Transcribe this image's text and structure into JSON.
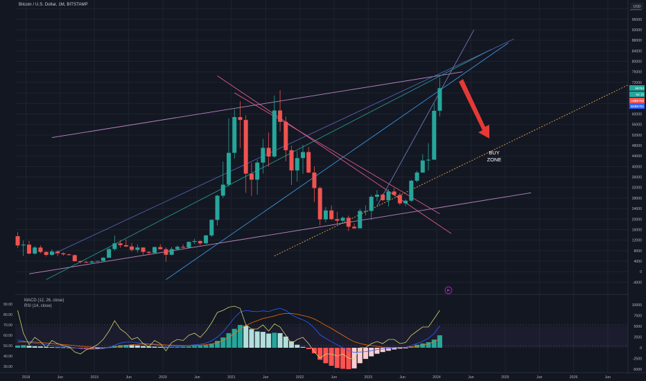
{
  "header": {
    "title": "Bitcoin / U.S. Dollar, 1M, BITSTAMP",
    "currency": "USD"
  },
  "indicators": {
    "macd_label": "MACD (12, 26, close)",
    "rsi_label": "RSI (14, close)"
  },
  "annotation": {
    "line1": "BUY",
    "line2": "ZONE"
  },
  "price_tags": [
    {
      "label": "",
      "value": "69784",
      "color": "#26a69a"
    },
    {
      "label": "",
      "value": "5d 1h",
      "color": "#26a69a"
    },
    {
      "label": "Ask",
      "value": "69786",
      "color": "#ef5350"
    },
    {
      "label": "Bid",
      "value": "69751",
      "color": "#2962ff"
    }
  ],
  "chart_data": {
    "type": "candlestick",
    "title": "Bitcoin / U.S. Dollar, 1M, BITSTAMP",
    "price_axis": {
      "ticks": [
        100000,
        96000,
        92000,
        88000,
        84000,
        80000,
        76000,
        72000,
        68000,
        64000,
        60000,
        56000,
        52000,
        48000,
        44000,
        40000,
        36000,
        32000,
        28000,
        24000,
        20000,
        16000,
        12000,
        8000,
        4000,
        0,
        -4000
      ],
      "range": [
        -6000,
        102000
      ]
    },
    "indicator_axis": {
      "rsi_ticks": [
        "90.00",
        "80.00",
        "70.00",
        "60.00",
        "50.00",
        "40.00",
        "30.00"
      ],
      "macd_ticks": [
        "10000",
        "7500",
        "5000",
        "2500",
        "0",
        "-2500",
        "-5000"
      ]
    },
    "time_axis": [
      "2018",
      "Jun",
      "2019",
      "Jun",
      "2020",
      "Jun",
      "2021",
      "Jun",
      "2022",
      "Jun",
      "2023",
      "Jun",
      "2024",
      "Jun",
      "2025",
      "Jun",
      "2026",
      "Jun"
    ],
    "x_start": "2018-01",
    "candles": [
      [
        13500,
        15000,
        9000,
        10000
      ],
      [
        10000,
        11800,
        6000,
        10300
      ],
      [
        10300,
        11700,
        6600,
        6900
      ],
      [
        6900,
        9800,
        6400,
        9200
      ],
      [
        9200,
        10000,
        7000,
        7500
      ],
      [
        7500,
        7800,
        5800,
        6400
      ],
      [
        6400,
        8500,
        6000,
        7700
      ],
      [
        7700,
        8200,
        5900,
        7000
      ],
      [
        7000,
        7400,
        6100,
        6600
      ],
      [
        6600,
        6800,
        6200,
        6300
      ],
      [
        6300,
        6500,
        3900,
        4000
      ],
      [
        4000,
        4300,
        3200,
        3700
      ],
      [
        3700,
        4100,
        3400,
        3450
      ],
      [
        3450,
        4200,
        3400,
        3850
      ],
      [
        3850,
        4100,
        3700,
        4100
      ],
      [
        4100,
        5600,
        4000,
        5300
      ],
      [
        5300,
        9100,
        5300,
        8600
      ],
      [
        8600,
        13800,
        8000,
        10800
      ],
      [
        10800,
        12000,
        9100,
        10100
      ],
      [
        10100,
        12300,
        9300,
        9600
      ],
      [
        9600,
        10900,
        7700,
        8300
      ],
      [
        8300,
        10400,
        7300,
        9200
      ],
      [
        9200,
        9300,
        6500,
        7550
      ],
      [
        7550,
        7700,
        6400,
        7200
      ],
      [
        7200,
        9600,
        6900,
        9350
      ],
      [
        9350,
        10500,
        8500,
        8550
      ],
      [
        8550,
        9200,
        3800,
        6450
      ],
      [
        6450,
        9400,
        6200,
        8600
      ],
      [
        8600,
        10000,
        8100,
        9450
      ],
      [
        9450,
        10400,
        8900,
        9150
      ],
      [
        9150,
        11500,
        9000,
        11350
      ],
      [
        11350,
        12500,
        10500,
        11650
      ],
      [
        11650,
        12000,
        10000,
        10800
      ],
      [
        10800,
        14000,
        10400,
        13800
      ],
      [
        13800,
        19900,
        13200,
        19700
      ],
      [
        19700,
        29300,
        17600,
        28900
      ],
      [
        28900,
        41900,
        28100,
        33100
      ],
      [
        33100,
        58300,
        32300,
        45200
      ],
      [
        45200,
        61800,
        43000,
        58800
      ],
      [
        58800,
        64800,
        47000,
        57700
      ],
      [
        57700,
        59500,
        30000,
        37300
      ],
      [
        37300,
        41300,
        28800,
        35000
      ],
      [
        35000,
        42500,
        29300,
        41500
      ],
      [
        41500,
        50500,
        37300,
        47100
      ],
      [
        47100,
        52900,
        40000,
        43800
      ],
      [
        43800,
        67000,
        43300,
        61300
      ],
      [
        61300,
        69000,
        53300,
        57000
      ],
      [
        57000,
        59000,
        42000,
        46200
      ],
      [
        46200,
        47900,
        33000,
        38500
      ],
      [
        38500,
        45800,
        34300,
        43200
      ],
      [
        43200,
        48200,
        37200,
        45500
      ],
      [
        45500,
        47400,
        37500,
        37700
      ],
      [
        37700,
        40000,
        26500,
        31800
      ],
      [
        31800,
        32400,
        17600,
        19900
      ],
      [
        19900,
        24600,
        18800,
        23300
      ],
      [
        23300,
        25200,
        19600,
        20000
      ],
      [
        20000,
        22800,
        18200,
        19400
      ],
      [
        19400,
        21000,
        18200,
        20500
      ],
      [
        20500,
        21400,
        15500,
        17100
      ],
      [
        17100,
        18400,
        16300,
        16500
      ],
      [
        16500,
        23900,
        16500,
        23100
      ],
      [
        23100,
        25200,
        21400,
        23100
      ],
      [
        23100,
        29200,
        19600,
        28500
      ],
      [
        28500,
        31000,
        26900,
        29300
      ],
      [
        29300,
        29800,
        26800,
        27200
      ],
      [
        27200,
        31400,
        24800,
        30500
      ],
      [
        30500,
        31800,
        28900,
        29200
      ],
      [
        29200,
        30000,
        25300,
        26000
      ],
      [
        26000,
        27500,
        24900,
        27000
      ],
      [
        27000,
        35000,
        26500,
        34600
      ],
      [
        34600,
        38400,
        34000,
        37700
      ],
      [
        37700,
        44700,
        37600,
        42300
      ],
      [
        42300,
        48900,
        38500,
        42600
      ],
      [
        42600,
        64000,
        42500,
        61200
      ],
      [
        61200,
        73800,
        59000,
        69784
      ]
    ],
    "trendlines": [
      {
        "color": "#ce93d8",
        "points": [
          [
            "2018-07",
            51000
          ],
          [
            "2024-07",
            76000
          ]
        ]
      },
      {
        "color": "#ce93d8",
        "points": [
          [
            "2018-03",
            -800
          ],
          [
            "2025-07",
            30000
          ]
        ]
      },
      {
        "color": "#f06292",
        "points": [
          [
            "2020-12",
            74500
          ],
          [
            "2024-05",
            14500
          ]
        ]
      },
      {
        "color": "#f06292",
        "points": [
          [
            "2021-03",
            68000
          ],
          [
            "2024-03",
            22000
          ]
        ]
      },
      {
        "color": "#ffb74d",
        "points": [
          [
            "2021-10",
            6000
          ],
          [
            "2026-12",
            71000
          ]
        ]
      },
      {
        "color": "#26a69a",
        "points": [
          [
            "2018-06",
            -3000
          ],
          [
            "2024-12",
            84500
          ]
        ]
      },
      {
        "color": "#42a5f5",
        "points": [
          [
            "2020-03",
            -3000
          ],
          [
            "2025-03",
            87000
          ]
        ]
      },
      {
        "color": "#5c6bc0",
        "points": [
          [
            "2018-07",
            6500
          ],
          [
            "2025-04",
            88500
          ]
        ]
      },
      {
        "color": "#7986cb",
        "points": [
          [
            "2023-04",
            25000
          ],
          [
            "2024-09",
            92000
          ]
        ]
      }
    ],
    "macd_histogram": [
      500,
      600,
      450,
      350,
      300,
      200,
      150,
      100,
      80,
      60,
      -50,
      -150,
      -200,
      -250,
      -200,
      -100,
      100,
      400,
      600,
      650,
      600,
      550,
      400,
      300,
      250,
      200,
      100,
      150,
      200,
      250,
      300,
      400,
      450,
      600,
      900,
      1600,
      2400,
      3400,
      4400,
      5300,
      5100,
      4300,
      3800,
      3700,
      3300,
      3500,
      3400,
      2600,
      1500,
      700,
      200,
      -300,
      -1300,
      -2800,
      -3600,
      -4200,
      -4700,
      -4900,
      -5000,
      -4800,
      -3600,
      -2600,
      -2000,
      -1400,
      -1000,
      -700,
      -400,
      -200,
      -100,
      300,
      700,
      1000,
      1300,
      1900,
      2900
    ],
    "rsi": [
      84,
      62,
      51,
      58,
      54,
      48,
      55,
      52,
      50,
      49,
      44,
      42,
      46,
      48,
      51,
      56,
      64,
      74,
      66,
      62,
      56,
      58,
      52,
      49,
      55,
      52,
      45,
      53,
      56,
      55,
      60,
      62,
      58,
      64,
      72,
      82,
      84,
      87,
      88,
      86,
      70,
      66,
      66,
      70,
      64,
      71,
      68,
      60,
      52,
      56,
      58,
      52,
      44,
      38,
      42,
      42,
      40,
      42,
      38,
      37,
      48,
      48,
      52,
      54,
      52,
      56,
      56,
      52,
      53,
      60,
      64,
      68,
      68,
      76,
      84
    ],
    "macd_line": [
      1800,
      1600,
      1200,
      1100,
      900,
      700,
      500,
      400,
      300,
      200,
      0,
      -200,
      -300,
      -350,
      -300,
      -200,
      100,
      600,
      1100,
      1300,
      1300,
      1200,
      1000,
      800,
      700,
      500,
      300,
      300,
      300,
      400,
      500,
      700,
      800,
      1100,
      1600,
      2500,
      3700,
      5300,
      7000,
      8300,
      8700,
      8500,
      8400,
      8600,
      8400,
      8900,
      9200,
      8700,
      7700,
      7000,
      6500,
      5800,
      4600,
      3000,
      2200,
      1400,
      700,
      0,
      -700,
      -1100,
      -1000,
      -900,
      -700,
      -400,
      -300,
      -200,
      0,
      50,
      100,
      500,
      1000,
      1500,
      2200,
      3300,
      5100
    ],
    "macd_signal": [
      1300,
      1400,
      1350,
      1300,
      1200,
      1100,
      1000,
      850,
      750,
      650,
      500,
      350,
      250,
      150,
      50,
      0,
      50,
      150,
      350,
      550,
      700,
      800,
      850,
      850,
      800,
      750,
      650,
      600,
      550,
      500,
      500,
      550,
      600,
      700,
      900,
      1200,
      1700,
      2400,
      3300,
      4300,
      5200,
      5800,
      6300,
      6800,
      7100,
      7400,
      7800,
      8000,
      8000,
      7800,
      7500,
      7200,
      6700,
      6000,
      5200,
      4500,
      3700,
      2900,
      2100,
      1400,
      1000,
      700,
      500,
      300,
      150,
      100,
      100,
      100,
      100,
      200,
      350,
      600,
      900,
      1400,
      2100
    ]
  }
}
